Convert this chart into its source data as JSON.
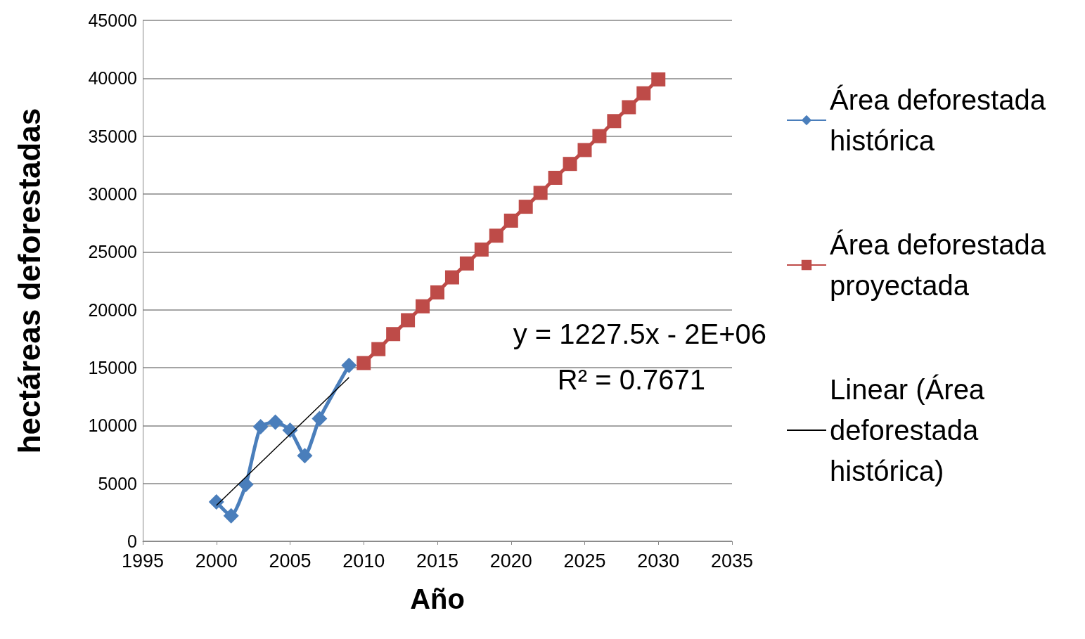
{
  "chart_data": {
    "type": "line",
    "xlabel": "Año",
    "ylabel": "hectáreas deforestadas",
    "xlim": [
      1995,
      2035
    ],
    "xticks": [
      1995,
      2000,
      2005,
      2010,
      2015,
      2020,
      2025,
      2030,
      2035
    ],
    "ylim": [
      0,
      45000
    ],
    "yticks": [
      0,
      5000,
      10000,
      15000,
      20000,
      25000,
      30000,
      35000,
      40000,
      45000
    ],
    "grid": "y",
    "legend": "right",
    "series": [
      {
        "name": "Área deforestada histórica",
        "color": "#4a7ebb",
        "marker": "diamond",
        "x": [
          2000,
          2001,
          2002,
          2003,
          2004,
          2005,
          2006,
          2007,
          2009
        ],
        "values": [
          3400,
          2200,
          4900,
          9900,
          10300,
          9600,
          7400,
          10600,
          15200
        ]
      },
      {
        "name": "Área deforestada proyectada",
        "color": "#be4b48",
        "marker": "square",
        "x": [
          2010,
          2011,
          2012,
          2013,
          2014,
          2015,
          2016,
          2017,
          2018,
          2019,
          2020,
          2021,
          2022,
          2023,
          2024,
          2025,
          2026,
          2027,
          2028,
          2029,
          2030
        ],
        "values": [
          15400,
          16600,
          17900,
          19100,
          20300,
          21500,
          22800,
          24000,
          25200,
          26400,
          27700,
          28900,
          30100,
          31400,
          32600,
          33800,
          35000,
          36300,
          37500,
          38700,
          39900
        ]
      },
      {
        "name": "Linear (Área deforestada histórica)",
        "color": "#000000",
        "marker": "none",
        "x": [
          2000,
          2009
        ],
        "values": [
          3100,
          14150
        ]
      }
    ],
    "annotations": [
      "y = 1227.5x - 2E+06",
      "R² = 0.7671"
    ]
  }
}
